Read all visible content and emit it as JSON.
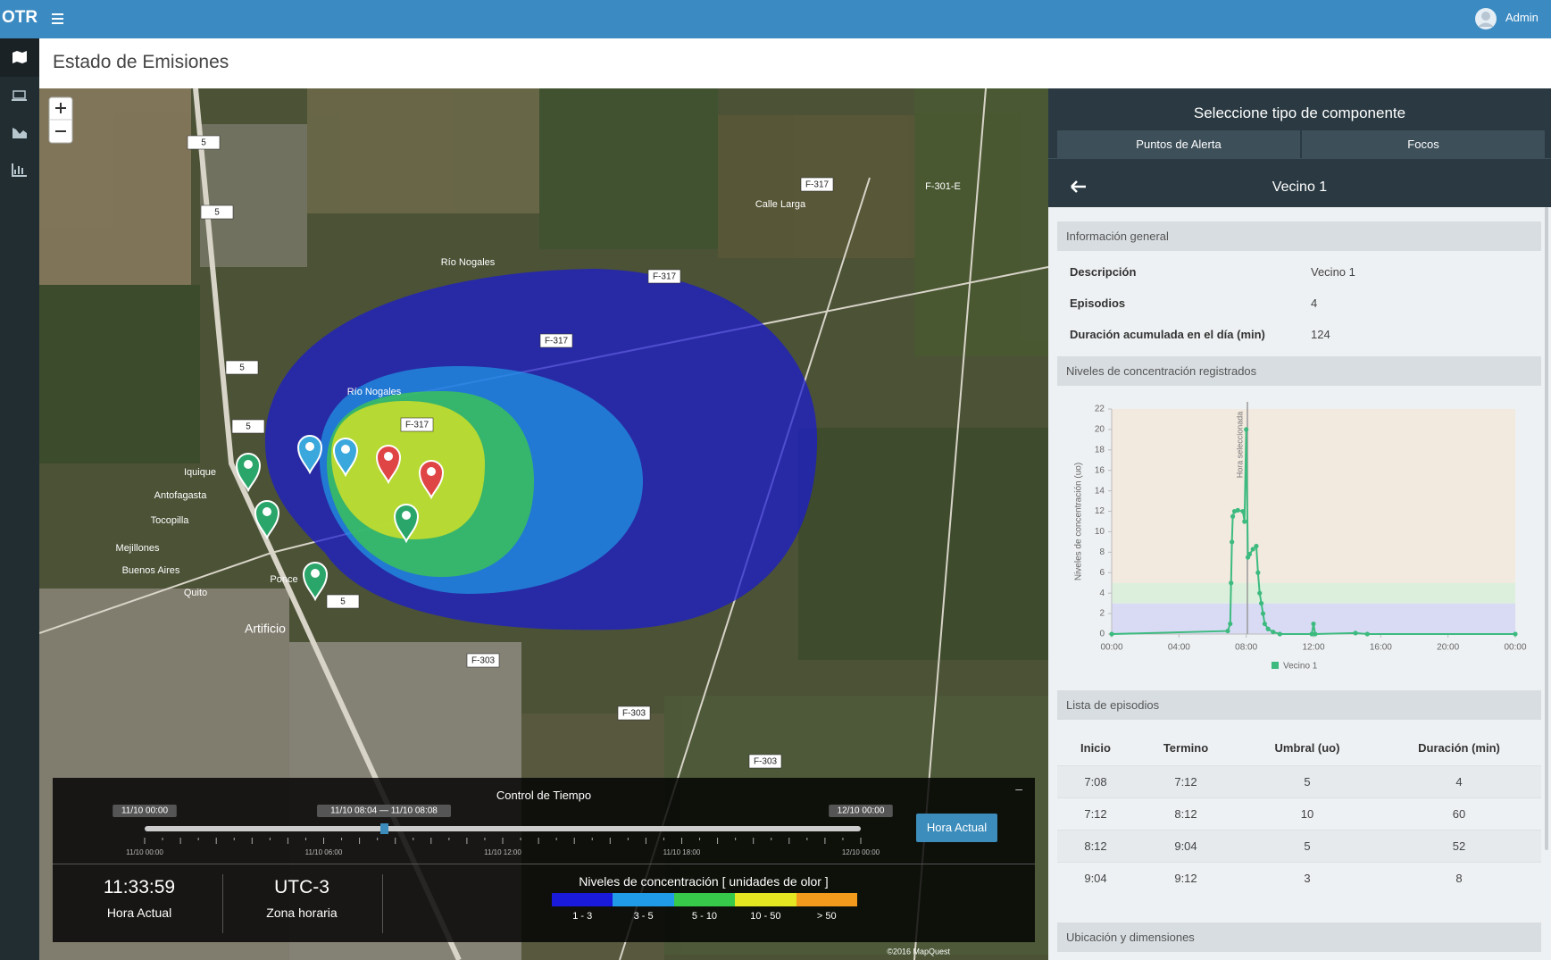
{
  "header": {
    "brand": "OTR",
    "user": "Admin"
  },
  "page_title": "Estado de Emisiones",
  "map": {
    "labels": [
      "F-317",
      "F-317",
      "F-317",
      "F-317",
      "F-303",
      "F-303",
      "F-303",
      "5",
      "5",
      "5",
      "5",
      "5",
      "Artificio",
      "Río Nogales",
      "Río Nogales",
      "Calle Larga",
      "Ponce",
      "Iquique",
      "Antofagasta",
      "Tocopilla",
      "Mejillones",
      "Buenos Aires",
      "Quito",
      "F-301-E"
    ],
    "attribution": "©2016 MapQuest"
  },
  "time_control": {
    "title": "Control de Tiempo",
    "start": "11/10 00:00",
    "range": "11/10 08:04 — 11/10 08:08",
    "end": "12/10 00:00",
    "ticks": [
      "11/10 00:00",
      "11/10 06:00",
      "11/10 12:00",
      "11/10 18:00",
      "12/10 00:00"
    ],
    "button": "Hora Actual",
    "clock": "11:33:59",
    "clock_label": "Hora Actual",
    "timezone": "UTC-3",
    "timezone_label": "Zona horaria"
  },
  "legend": {
    "title": "Niveles de concentración [ unidades de olor ]",
    "items": [
      {
        "label": "1 - 3",
        "color": "#1a1adb"
      },
      {
        "label": "3 - 5",
        "color": "#1f9be8"
      },
      {
        "label": "5 - 10",
        "color": "#37c94a"
      },
      {
        "label": "10 - 50",
        "color": "#e3e620"
      },
      {
        "label": "> 50",
        "color": "#f39a1c"
      }
    ]
  },
  "panel": {
    "title": "Seleccione tipo de componente",
    "tabs": [
      "Puntos de Alerta",
      "Focos"
    ],
    "component": "Vecino 1",
    "general_title": "Información general",
    "fields": [
      {
        "label": "Descripción",
        "value": "Vecino 1"
      },
      {
        "label": "Episodios",
        "value": "4"
      },
      {
        "label": "Duración acumulada en el día (min)",
        "value": "124"
      }
    ],
    "levels_title": "Niveles de concentración registrados",
    "episodes_title": "Lista de episodios",
    "table": {
      "columns": [
        "Inicio",
        "Termino",
        "Umbral (uo)",
        "Duración (min)"
      ],
      "rows": [
        [
          "7:08",
          "7:12",
          "5",
          "4"
        ],
        [
          "7:12",
          "8:12",
          "10",
          "60"
        ],
        [
          "8:12",
          "9:04",
          "5",
          "52"
        ],
        [
          "9:04",
          "9:12",
          "3",
          "8"
        ]
      ]
    },
    "location_title": "Ubicación y dimensiones"
  },
  "chart_data": {
    "type": "line",
    "ylabel": "Niveles de concentración (uo)",
    "annotation": "Hora seleccionada",
    "annotation_x": 8.07,
    "xlim": [
      0,
      24
    ],
    "ylim": [
      0,
      22
    ],
    "xticks": [
      {
        "value": 0,
        "label": "00:00"
      },
      {
        "value": 4,
        "label": "04:00"
      },
      {
        "value": 8,
        "label": "08:00"
      },
      {
        "value": 12,
        "label": "12:00"
      },
      {
        "value": 16,
        "label": "16:00"
      },
      {
        "value": 20,
        "label": "20:00"
      },
      {
        "value": 24,
        "label": "00:00"
      }
    ],
    "yticks": [
      0,
      2,
      4,
      6,
      8,
      10,
      12,
      14,
      16,
      18,
      20,
      22
    ],
    "bands": [
      {
        "from": 0,
        "to": 3,
        "color": "#d9dbf5"
      },
      {
        "from": 3,
        "to": 5,
        "color": "#dcefdc"
      },
      {
        "from": 5,
        "to": 22,
        "color": "#f2e9df"
      }
    ],
    "x": [
      0,
      6.9,
      7.05,
      7.1,
      7.15,
      7.2,
      7.3,
      7.5,
      7.8,
      7.9,
      8.0,
      8.1,
      8.2,
      8.4,
      8.6,
      8.7,
      8.8,
      8.9,
      9.0,
      9.1,
      9.3,
      9.6,
      10,
      11.9,
      12,
      12.1,
      14.5,
      15.2,
      24
    ],
    "series": [
      {
        "name": "Vecino 1",
        "color": "#3dbb7f",
        "values": [
          0,
          0.3,
          1,
          5,
          9,
          11.5,
          12,
          12.1,
          12,
          11,
          20,
          7.5,
          7.8,
          8.3,
          8.6,
          6,
          4,
          3,
          2,
          1,
          0.5,
          0.2,
          0,
          0,
          1,
          0,
          0.1,
          0,
          0
        ]
      }
    ]
  }
}
